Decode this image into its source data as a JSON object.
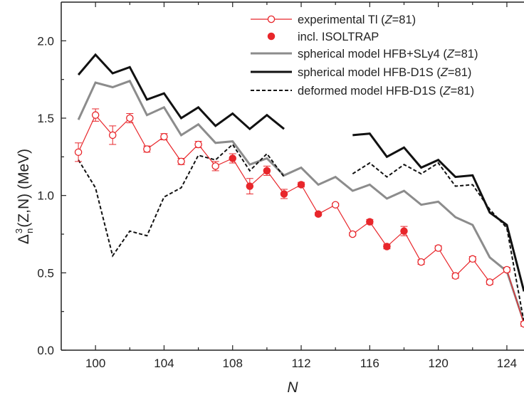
{
  "chart_data": {
    "type": "line",
    "xlabel": "N",
    "ylabel_main": "Δ",
    "ylabel_sup": "3",
    "ylabel_sub": "n",
    "ylabel_rest": "(Z,N) (MeV)",
    "xlim": [
      98,
      125
    ],
    "ylim": [
      0,
      2.25
    ],
    "xticks": [
      100,
      104,
      108,
      112,
      116,
      120,
      124
    ],
    "yticks": [
      0.0,
      0.5,
      1.0,
      1.5,
      2.0
    ],
    "ytick_labels": [
      "0.0",
      "0.5",
      "1.0",
      "1.5",
      "2.0"
    ],
    "grid": false,
    "legend_position": "top-right",
    "series": [
      {
        "name": "experimental Tl (Z=81)",
        "kind": "experimental",
        "color": "#e8262b",
        "points": [
          {
            "x": 99,
            "y": 1.28,
            "err": 0.06,
            "isoltrap": false
          },
          {
            "x": 100,
            "y": 1.52,
            "err": 0.04,
            "isoltrap": false
          },
          {
            "x": 101,
            "y": 1.39,
            "err": 0.06,
            "isoltrap": false
          },
          {
            "x": 102,
            "y": 1.5,
            "err": 0.03,
            "isoltrap": false
          },
          {
            "x": 103,
            "y": 1.3,
            "err": 0.02,
            "isoltrap": false
          },
          {
            "x": 104,
            "y": 1.38,
            "err": 0.02,
            "isoltrap": false
          },
          {
            "x": 105,
            "y": 1.22,
            "err": 0.02,
            "isoltrap": false
          },
          {
            "x": 106,
            "y": 1.33,
            "err": 0.02,
            "isoltrap": false
          },
          {
            "x": 107,
            "y": 1.19,
            "err": 0.03,
            "isoltrap": false
          },
          {
            "x": 108,
            "y": 1.24,
            "err": 0.03,
            "isoltrap": true
          },
          {
            "x": 109,
            "y": 1.06,
            "err": 0.05,
            "isoltrap": true
          },
          {
            "x": 110,
            "y": 1.16,
            "err": 0.03,
            "isoltrap": true
          },
          {
            "x": 111,
            "y": 1.01,
            "err": 0.03,
            "isoltrap": true
          },
          {
            "x": 112,
            "y": 1.07,
            "err": 0.015,
            "isoltrap": true
          },
          {
            "x": 113,
            "y": 0.88,
            "err": 0.01,
            "isoltrap": true
          },
          {
            "x": 114,
            "y": 0.94,
            "err": 0.01,
            "isoltrap": false
          },
          {
            "x": 115,
            "y": 0.75,
            "err": 0.01,
            "isoltrap": false
          },
          {
            "x": 116,
            "y": 0.83,
            "err": 0.015,
            "isoltrap": true
          },
          {
            "x": 117,
            "y": 0.67,
            "err": 0.015,
            "isoltrap": true
          },
          {
            "x": 118,
            "y": 0.77,
            "err": 0.03,
            "isoltrap": true
          },
          {
            "x": 119,
            "y": 0.57,
            "err": 0.015,
            "isoltrap": false
          },
          {
            "x": 120,
            "y": 0.66,
            "err": 0.015,
            "isoltrap": false
          },
          {
            "x": 121,
            "y": 0.48,
            "err": 0.015,
            "isoltrap": false
          },
          {
            "x": 122,
            "y": 0.59,
            "err": 0.015,
            "isoltrap": false
          },
          {
            "x": 123,
            "y": 0.44,
            "err": 0.015,
            "isoltrap": false
          },
          {
            "x": 124,
            "y": 0.52,
            "err": 0.015,
            "isoltrap": false
          },
          {
            "x": 125,
            "y": 0.17,
            "err": 0.015,
            "isoltrap": false
          }
        ]
      },
      {
        "name": "incl. ISOLTRAP",
        "kind": "isoltrap-marker",
        "color": "#e8262b"
      },
      {
        "name": "spherical model HFB+SLy4 (Z=81)",
        "kind": "line",
        "color": "#8c8c8c",
        "dash": "",
        "segments": [
          {
            "x": [
              99,
              100,
              101,
              102,
              103,
              104,
              105,
              106,
              107,
              108,
              109,
              110,
              111,
              112,
              113,
              114,
              115,
              116,
              117,
              118,
              119,
              120,
              121,
              122,
              123,
              124,
              125
            ],
            "y": [
              1.49,
              1.73,
              1.7,
              1.74,
              1.52,
              1.57,
              1.39,
              1.46,
              1.34,
              1.35,
              1.2,
              1.24,
              1.13,
              1.18,
              1.07,
              1.12,
              1.03,
              1.07,
              0.98,
              1.03,
              0.94,
              0.96,
              0.86,
              0.81,
              0.6,
              0.51,
              0.18
            ]
          }
        ]
      },
      {
        "name": "spherical model HFB-D1S  (Z=81)",
        "kind": "line",
        "color": "#111111",
        "dash": "",
        "segments": [
          {
            "x": [
              99,
              100,
              101,
              102,
              103,
              104,
              105,
              106,
              107,
              108,
              109,
              110,
              111
            ],
            "y": [
              1.78,
              1.91,
              1.79,
              1.83,
              1.62,
              1.66,
              1.5,
              1.57,
              1.45,
              1.53,
              1.43,
              1.52,
              1.43
            ]
          },
          {
            "x": [
              115,
              116,
              117,
              118,
              119,
              120,
              121,
              122,
              123,
              124,
              125
            ],
            "y": [
              1.39,
              1.4,
              1.25,
              1.31,
              1.18,
              1.23,
              1.12,
              1.13,
              0.89,
              0.81,
              0.38
            ]
          }
        ]
      },
      {
        "name": "deformed model HFB-D1S  (Z=81)",
        "kind": "line",
        "color": "#111111",
        "dash": "5,3",
        "segments": [
          {
            "x": [
              99,
              100,
              101,
              102,
              103,
              104,
              105,
              106,
              107,
              108,
              109,
              110,
              111
            ],
            "y": [
              1.23,
              1.05,
              0.61,
              0.77,
              0.74,
              0.99,
              1.05,
              1.26,
              1.23,
              1.33,
              1.16,
              1.27,
              1.12
            ]
          },
          {
            "x": [
              115,
              116,
              117,
              118,
              119,
              120,
              121,
              122,
              123,
              124,
              125
            ],
            "y": [
              1.14,
              1.21,
              1.12,
              1.2,
              1.14,
              1.21,
              1.06,
              1.07,
              0.91,
              0.79,
              0.18
            ]
          }
        ]
      }
    ]
  }
}
